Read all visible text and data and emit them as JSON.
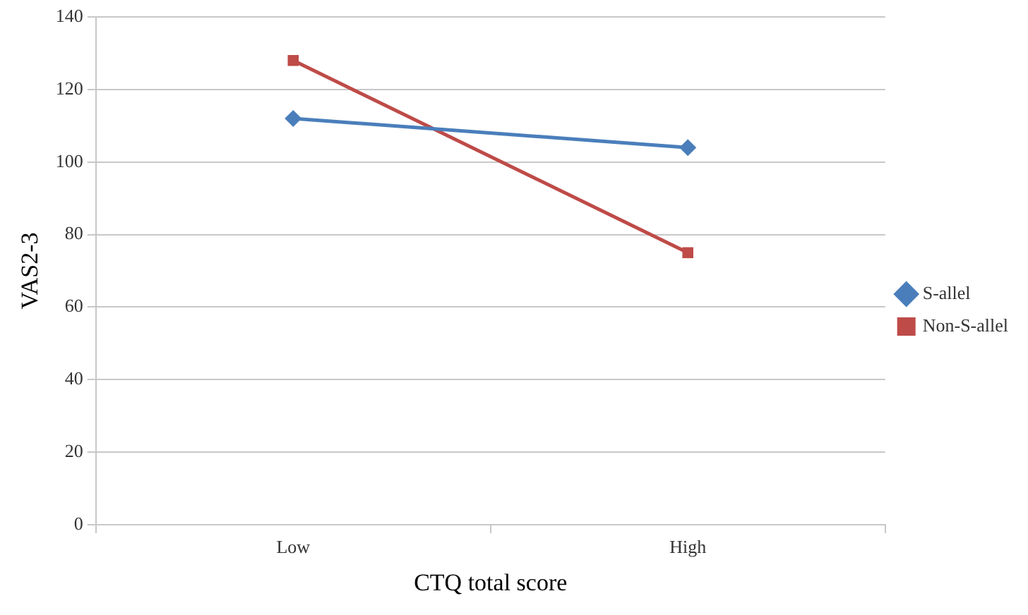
{
  "chart_data": {
    "type": "line",
    "xlabel": "CTQ total score",
    "ylabel": "VAS2-3",
    "categories": [
      "Low",
      "High"
    ],
    "series": [
      {
        "name": "S-allel",
        "color": "#4a7ebb",
        "values": [
          112,
          104
        ],
        "marker": "diamond"
      },
      {
        "name": "Non-S-allel",
        "color": "#be4b48",
        "values": [
          128,
          75
        ],
        "marker": "square"
      }
    ],
    "ylim": [
      0,
      140
    ],
    "yticks": [
      0,
      20,
      40,
      60,
      80,
      100,
      120,
      140
    ],
    "grid": "y",
    "legend": "right",
    "line_style": "solid"
  }
}
